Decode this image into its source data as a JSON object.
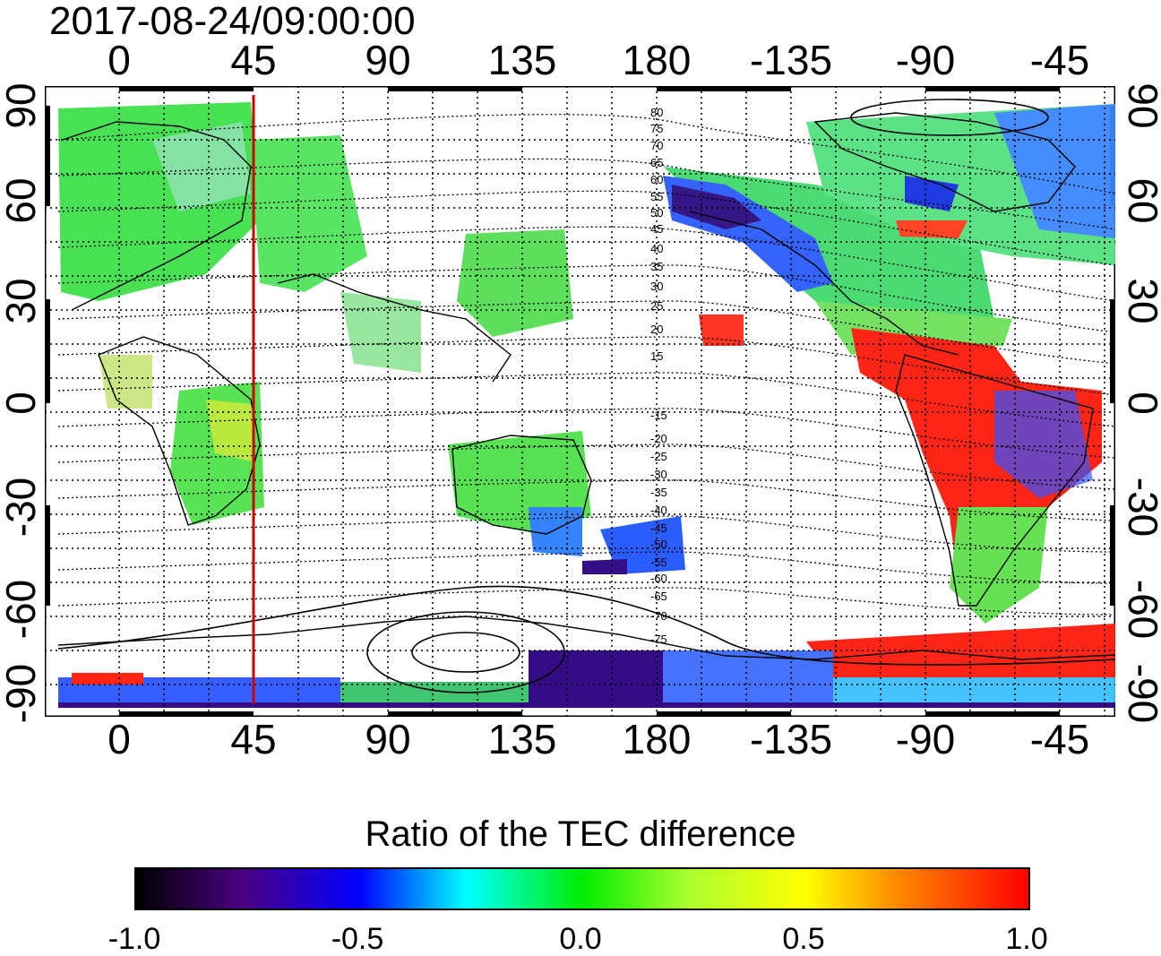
{
  "timestamp": "2017-08-24/09:00:00",
  "longitude_labels": [
    "0",
    "45",
    "90",
    "135",
    "180",
    "-135",
    "-90",
    "-45"
  ],
  "latitude_labels": [
    "90",
    "60",
    "30",
    "0",
    "-30",
    "-60",
    "-90"
  ],
  "magnetic_latitude_labels": [
    "80",
    "75",
    "70",
    "65",
    "60",
    "55",
    "50",
    "45",
    "40",
    "35",
    "30",
    "25",
    "20",
    "15",
    "-15",
    "-20",
    "-25",
    "-30",
    "-35",
    "-40",
    "-45",
    "-50",
    "-55",
    "-60",
    "-65",
    "-70",
    "-75"
  ],
  "colorbar": {
    "title": "Ratio of the TEC difference",
    "ticks": [
      "-1.0",
      "-0.5",
      "0.0",
      "0.5",
      "1.0"
    ],
    "range": [
      -1.0,
      1.0
    ],
    "colors": [
      "#000000",
      "#4b0082",
      "#0000ff",
      "#00ffff",
      "#00ee00",
      "#ffff00",
      "#ff8c00",
      "#ff0000"
    ]
  },
  "marker_longitude": 45,
  "marker_color": "#d40000"
}
